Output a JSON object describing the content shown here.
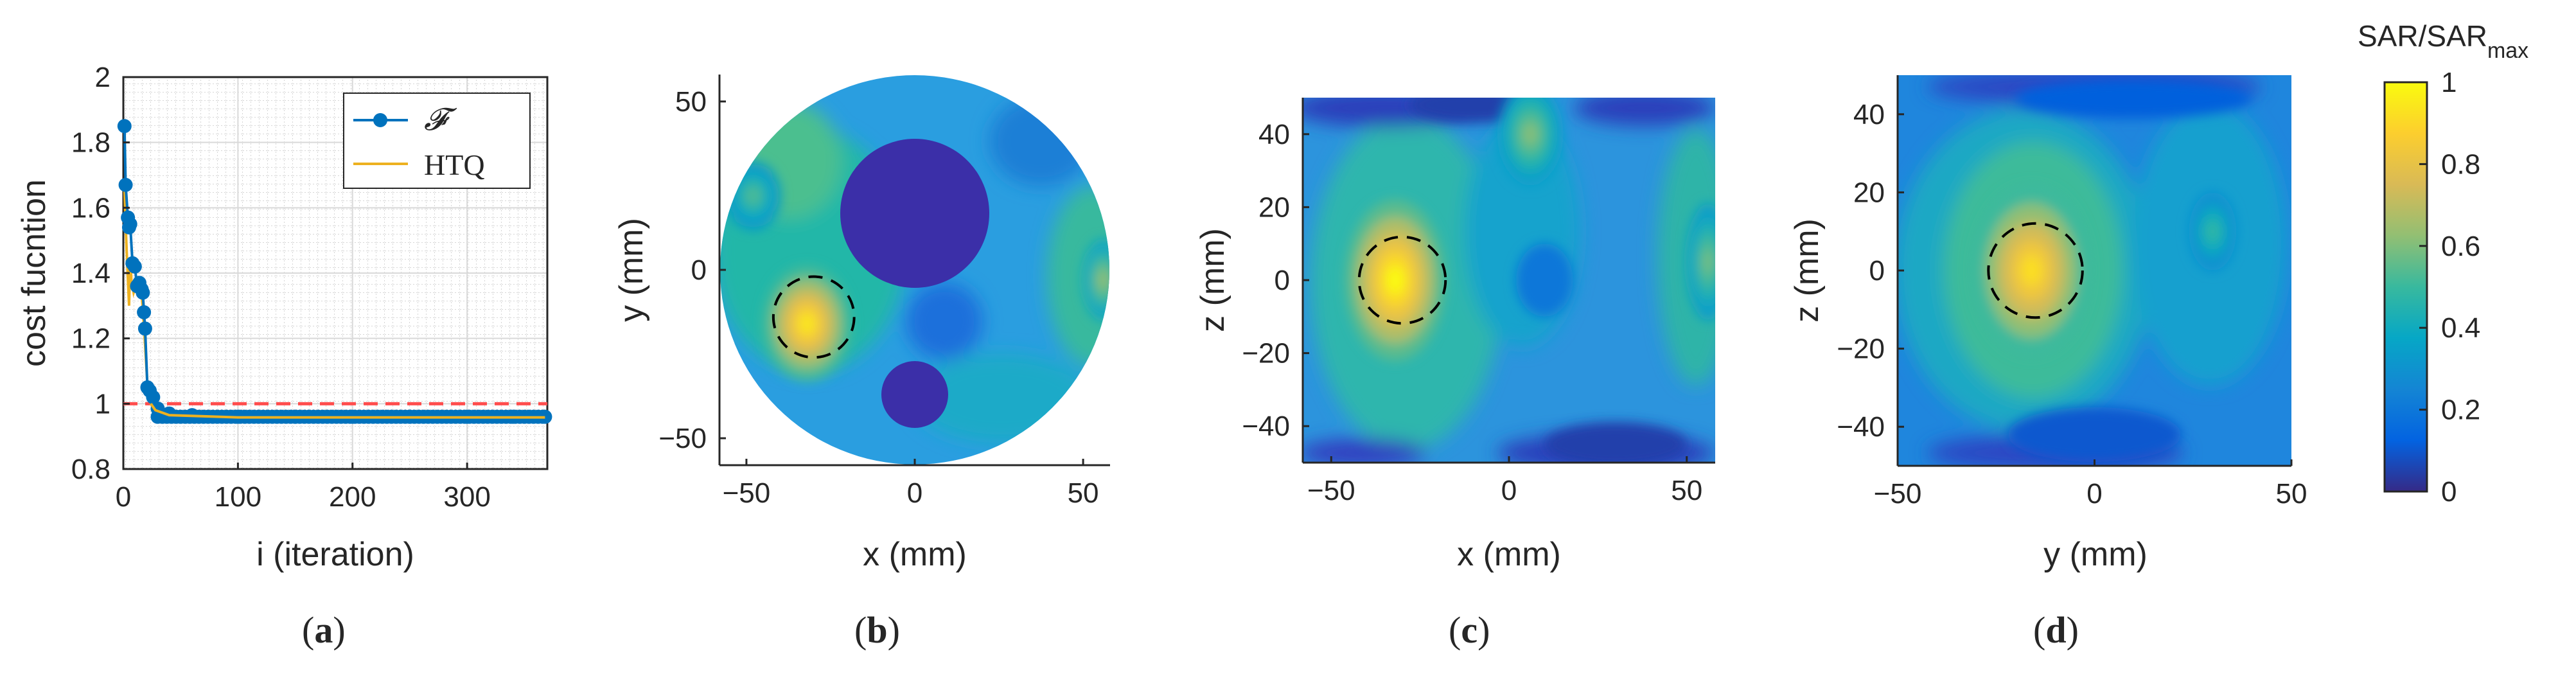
{
  "palette": {
    "axis": "#262626",
    "series_f": "#0072bd",
    "series_htq": "#edb120",
    "reference": "#ff4d4d",
    "tumor_outline": "#000000",
    "low_region": "#3b2fa8"
  },
  "panels": {
    "a": {
      "label": "a"
    },
    "b": {
      "label": "b"
    },
    "c": {
      "label": "c"
    },
    "d": {
      "label": "d"
    }
  },
  "colorbar": {
    "title_main": "SAR/SAR",
    "title_sub": "max",
    "ticks": [
      "0",
      "0.2",
      "0.4",
      "0.6",
      "0.8",
      "1"
    ],
    "colormap": "parula"
  },
  "chart_data": [
    {
      "id": "a",
      "type": "line",
      "title": "",
      "xlabel": "i (iteration)",
      "ylabel": "cost fucntion",
      "xlim": [
        0,
        370
      ],
      "ylim": [
        0.8,
        2
      ],
      "xticks": [
        "0",
        "100",
        "200",
        "300"
      ],
      "yticks": [
        "0.8",
        "1",
        "1.2",
        "1.4",
        "1.6",
        "1.8",
        "2"
      ],
      "grid": "minor",
      "legend": {
        "position": "top-right",
        "entries": [
          "𝓕",
          "HTQ"
        ]
      },
      "reference_line": {
        "y": 1.0,
        "style": "dashed"
      },
      "series": [
        {
          "name": "𝓕",
          "markers": true,
          "points": [
            [
              1,
              1.85
            ],
            [
              2,
              1.67
            ],
            [
              4,
              1.57
            ],
            [
              5,
              1.54
            ],
            [
              6,
              1.55
            ],
            [
              8,
              1.43
            ],
            [
              10,
              1.42
            ],
            [
              12,
              1.36
            ],
            [
              14,
              1.37
            ],
            [
              16,
              1.35
            ],
            [
              17,
              1.34
            ],
            [
              18,
              1.28
            ],
            [
              19,
              1.23
            ],
            [
              21,
              1.05
            ],
            [
              23,
              1.04
            ],
            [
              26,
              1.02
            ],
            [
              30,
              0.985
            ],
            [
              40,
              0.97
            ],
            [
              60,
              0.965
            ],
            [
              100,
              0.96
            ],
            [
              150,
              0.96
            ],
            [
              200,
              0.96
            ],
            [
              250,
              0.96
            ],
            [
              300,
              0.96
            ],
            [
              340,
              0.96
            ],
            [
              368,
              0.96
            ]
          ]
        },
        {
          "name": "HTQ",
          "markers": false,
          "points": [
            [
              1,
              1.66
            ],
            [
              2,
              1.55
            ],
            [
              3,
              1.46
            ],
            [
              5,
              1.3
            ],
            [
              6,
              1.44
            ],
            [
              7,
              1.38
            ],
            [
              9,
              1.34
            ],
            [
              11,
              1.36
            ],
            [
              13,
              1.33
            ],
            [
              15,
              1.38
            ],
            [
              17,
              1.29
            ],
            [
              19,
              1.18
            ],
            [
              21,
              1.06
            ],
            [
              24,
              1.0
            ],
            [
              28,
              0.98
            ],
            [
              40,
              0.965
            ],
            [
              100,
              0.958
            ],
            [
              200,
              0.958
            ],
            [
              300,
              0.958
            ],
            [
              368,
              0.958
            ]
          ]
        }
      ]
    },
    {
      "id": "b",
      "type": "heatmap",
      "title": "",
      "xlabel": "x (mm)",
      "ylabel": "y (mm)",
      "xlim": [
        -58,
        58
      ],
      "ylim": [
        -58,
        58
      ],
      "xticks": [
        "-50",
        "0",
        "50"
      ],
      "yticks": [
        "-50",
        "0",
        "50"
      ],
      "boundary": {
        "shape": "circle",
        "center": [
          0,
          0
        ],
        "radius": 58
      },
      "hotspots": [
        {
          "x": -32,
          "y": -16,
          "rx": 13,
          "ry": 17,
          "peak": 0.95
        },
        {
          "x": 56,
          "y": -3,
          "rx": 6,
          "ry": 12,
          "peak": 0.65
        },
        {
          "x": -48,
          "y": 22,
          "rx": 8,
          "ry": 10,
          "peak": 0.55
        }
      ],
      "low_regions": [
        {
          "shape": "circle",
          "x": 0,
          "y": 17,
          "r": 22,
          "value": 0.0
        },
        {
          "shape": "circle",
          "x": 0,
          "y": -37,
          "r": 10,
          "value": 0.0
        }
      ],
      "tumor": {
        "x": -30,
        "y": -14,
        "r": 12
      }
    },
    {
      "id": "c",
      "type": "heatmap",
      "title": "",
      "xlabel": "x (mm)",
      "ylabel": "z (mm)",
      "xlim": [
        -58,
        58
      ],
      "ylim": [
        -50,
        50
      ],
      "xticks": [
        "-50",
        "0",
        "50"
      ],
      "yticks": [
        "-40",
        "-20",
        "0",
        "20",
        "40"
      ],
      "hotspots": [
        {
          "x": -32,
          "y": 0,
          "rx": 14,
          "ry": 22,
          "peak": 1.0
        },
        {
          "x": 6,
          "y": 40,
          "rx": 9,
          "ry": 14,
          "peak": 0.62
        },
        {
          "x": 56,
          "y": 5,
          "rx": 6,
          "ry": 16,
          "peak": 0.6
        }
      ],
      "low_regions": [
        {
          "shape": "ellipse",
          "x": 10,
          "y": 0,
          "rx": 8,
          "ry": 10,
          "value": 0.2
        },
        {
          "shape": "ellipse",
          "x": -10,
          "y": 48,
          "rx": 18,
          "ry": 5,
          "value": 0.05
        },
        {
          "shape": "ellipse",
          "x": 30,
          "y": -45,
          "rx": 20,
          "ry": 6,
          "value": 0.05
        }
      ],
      "tumor": {
        "x": -30,
        "y": 0,
        "r": 12
      }
    },
    {
      "id": "d",
      "type": "heatmap",
      "title": "",
      "xlabel": "y (mm)",
      "ylabel": "z (mm)",
      "xlim": [
        -50,
        50
      ],
      "ylim": [
        -50,
        50
      ],
      "xticks": [
        "-50",
        "0",
        "50"
      ],
      "yticks": [
        "-40",
        "-20",
        "0",
        "20",
        "40"
      ],
      "hotspots": [
        {
          "x": -16,
          "y": 0,
          "rx": 15,
          "ry": 22,
          "peak": 0.92
        },
        {
          "x": 30,
          "y": 10,
          "rx": 6,
          "ry": 10,
          "peak": 0.5
        }
      ],
      "low_regions": [
        {
          "shape": "ellipse",
          "x": 0,
          "y": -42,
          "rx": 22,
          "ry": 7,
          "value": 0.1
        },
        {
          "shape": "ellipse",
          "x": 10,
          "y": 44,
          "rx": 30,
          "ry": 5,
          "value": 0.12
        }
      ],
      "tumor": {
        "x": -15,
        "y": 0,
        "r": 12
      }
    }
  ]
}
